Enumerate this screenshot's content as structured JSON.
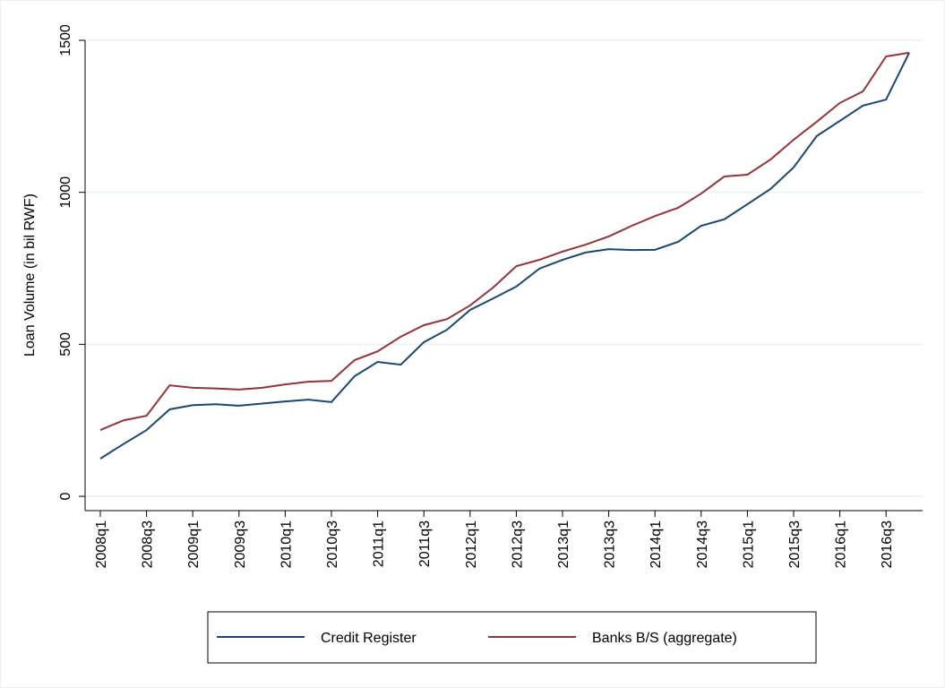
{
  "chart_data": {
    "type": "line",
    "y_label": "Loan Volume (in bil RWF)",
    "categories": [
      "2008q1",
      null,
      "2008q3",
      null,
      "2009q1",
      null,
      "2009q3",
      null,
      "2010q1",
      null,
      "2010q3",
      null,
      "2011q1",
      null,
      "2011q3",
      null,
      "2012q1",
      null,
      "2012q3",
      null,
      "2013q1",
      null,
      "2013q3",
      null,
      "2014q1",
      null,
      "2014q3",
      null,
      "2015q1",
      null,
      "2015q3",
      null,
      "2016q1",
      null,
      "2016q3",
      null
    ],
    "series": [
      {
        "name": "Credit Register",
        "color": "#1a476f",
        "values": [
          124,
          172,
          218,
          286,
          300,
          303,
          298,
          305,
          312,
          318,
          310,
          395,
          442,
          433,
          507,
          548,
          613,
          651,
          690,
          749,
          778,
          802,
          813,
          810,
          811,
          837,
          890,
          911,
          961,
          1011,
          1082,
          1185,
          1235,
          1285,
          1305,
          1459
        ]
      },
      {
        "name": "Banks B/S (aggregate)",
        "color": "#90353b",
        "values": [
          218,
          250,
          265,
          365,
          357,
          355,
          351,
          357,
          368,
          377,
          380,
          448,
          477,
          525,
          563,
          583,
          628,
          687,
          757,
          778,
          805,
          828,
          855,
          890,
          922,
          949,
          996,
          1052,
          1058,
          1108,
          1173,
          1232,
          1294,
          1332,
          1447,
          1459
        ]
      }
    ],
    "ylim": [
      -47,
      1500
    ],
    "yticks": [
      0,
      500,
      1000,
      1500
    ],
    "grid": true,
    "legend": "bottom"
  }
}
